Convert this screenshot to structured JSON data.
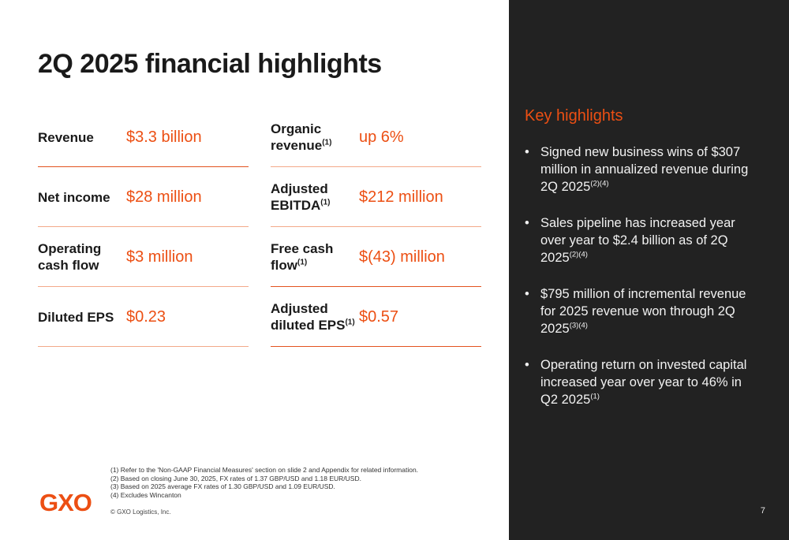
{
  "title": "2Q 2025 financial highlights",
  "metrics": [
    {
      "label": "Revenue",
      "value": "$3.3 billion"
    },
    {
      "label": "Organic revenue",
      "note": "(1)",
      "value": "up 6%"
    },
    {
      "label": "Net income",
      "value": "$28 million"
    },
    {
      "label": "Adjusted EBITDA",
      "note": "(1)",
      "value": "$212 million"
    },
    {
      "label": "Operating cash flow",
      "value": "$3 million"
    },
    {
      "label": "Free cash flow",
      "note": "(1)",
      "value": "$(43) million"
    },
    {
      "label": "Diluted EPS",
      "value": "$0.23"
    },
    {
      "label": "Adjusted diluted EPS",
      "note": "(1)",
      "value": "$0.57"
    }
  ],
  "panel": {
    "title": "Key highlights",
    "bullets": [
      {
        "text": "Signed new business wins of $307 million in annualized revenue during 2Q 2025",
        "note": "(2)(4)"
      },
      {
        "text": "Sales pipeline has increased year over year to $2.4 billion as of 2Q 2025",
        "note": "(2)(4)"
      },
      {
        "text": "$795 million of incremental revenue for 2025 revenue won through 2Q 2025",
        "note": "(3)(4)"
      },
      {
        "text": "Operating return on invested capital increased year over year to 46% in Q2 2025",
        "note": "(1)"
      }
    ]
  },
  "footnotes": [
    "(1) Refer to the 'Non-GAAP Financial Measures' section on slide 2 and Appendix for related information.",
    "(2) Based on closing June 30, 2025, FX rates of 1.37 GBP/USD and 1.18 EUR/USD.",
    "(3) Based on 2025 average FX rates of 1.30 GBP/USD and 1.09 EUR/USD.",
    "(4) Excludes Wincanton"
  ],
  "copyright": "© GXO Logistics, Inc.",
  "logo_text": "GXO",
  "page_number": "7",
  "colors": {
    "accent": "#ec4f13",
    "panel_bg": "#222222",
    "text": "#1a1a1a"
  }
}
